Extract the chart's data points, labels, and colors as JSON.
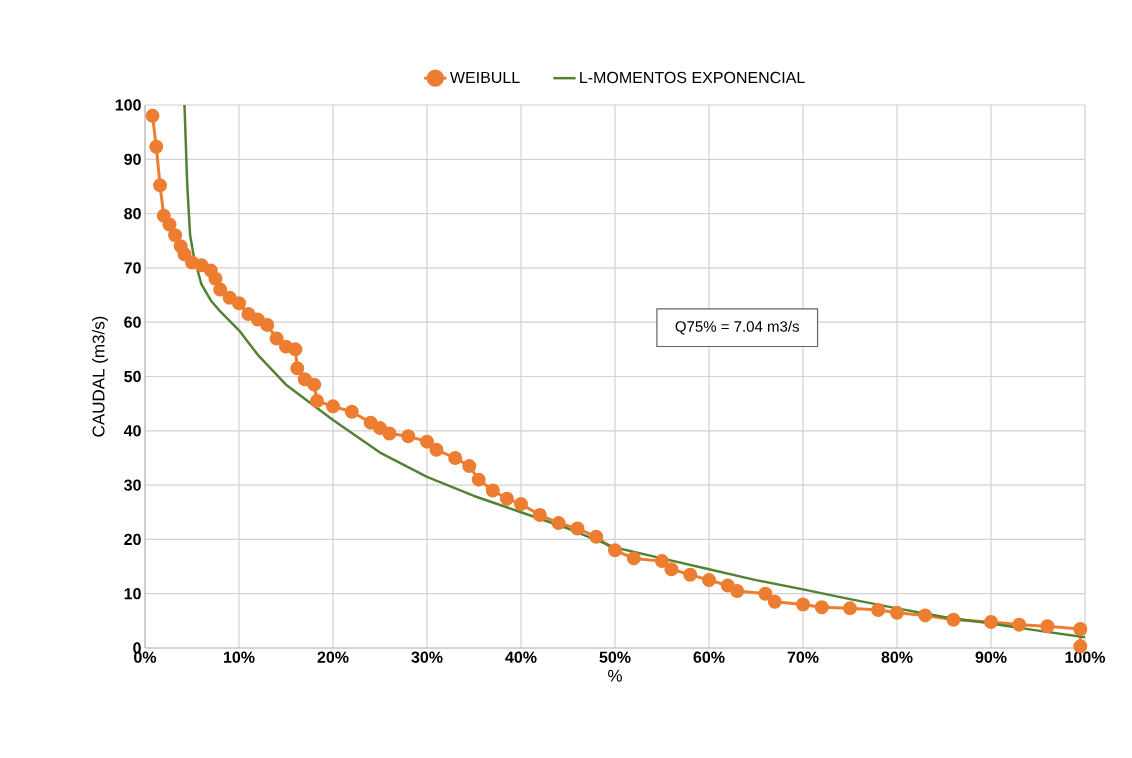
{
  "chart_data": {
    "type": "line",
    "xlabel": "%",
    "ylabel": "CAUDAL (m3/s)",
    "annotations": [
      "Q75% = 7.04 m3/s"
    ],
    "xlim": [
      0,
      100
    ],
    "ylim": [
      0,
      100
    ],
    "xticks": [
      {
        "value": 0,
        "label": "0%"
      },
      {
        "value": 10,
        "label": "10%"
      },
      {
        "value": 20,
        "label": "20%"
      },
      {
        "value": 30,
        "label": "30%"
      },
      {
        "value": 40,
        "label": "40%"
      },
      {
        "value": 50,
        "label": "50%"
      },
      {
        "value": 60,
        "label": "60%"
      },
      {
        "value": 70,
        "label": "70%"
      },
      {
        "value": 80,
        "label": "80%"
      },
      {
        "value": 90,
        "label": "90%"
      },
      {
        "value": 100,
        "label": "100%"
      }
    ],
    "yticks": [
      0,
      10,
      20,
      30,
      40,
      50,
      60,
      70,
      80,
      90,
      100
    ],
    "grid": true,
    "legend": "top",
    "series": [
      {
        "name": "WEIBULL",
        "color": "#ed7d31",
        "marker": "circle",
        "line_style": "solid",
        "x": [
          0.8,
          1.2,
          1.6,
          2.0,
          2.6,
          3.2,
          3.8,
          4.2,
          5,
          6,
          7,
          7.5,
          8,
          9,
          10,
          11,
          12,
          13,
          14,
          15,
          16,
          16.2,
          17,
          18,
          18.3,
          20,
          22,
          24,
          25,
          26,
          28,
          30,
          31,
          33,
          34.5,
          35.5,
          37,
          38.5,
          40,
          42,
          44,
          46,
          48,
          50,
          52,
          55,
          56,
          58,
          60,
          62,
          63,
          66,
          67,
          70,
          72,
          75,
          78,
          80,
          83,
          86,
          90,
          93,
          96,
          99.5,
          99.5
        ],
        "values": [
          98,
          92.3,
          85.2,
          79.6,
          78,
          76,
          74,
          72.5,
          71,
          70.5,
          69.5,
          68,
          66,
          64.5,
          63.5,
          61.5,
          60.5,
          59.5,
          57,
          55.5,
          55,
          51.5,
          49.5,
          48.5,
          45.5,
          44.5,
          43.5,
          41.5,
          40.5,
          39.5,
          39,
          38,
          36.5,
          35,
          33.5,
          31,
          29,
          27.5,
          26.5,
          24.5,
          23,
          22,
          20.5,
          18,
          16.5,
          16,
          14.5,
          13.5,
          12.5,
          11.5,
          10.5,
          10,
          8.5,
          8,
          7.5,
          7.3,
          7,
          6.5,
          6,
          5.2,
          4.8,
          4.3,
          4,
          3.5,
          0.3
        ]
      },
      {
        "name": "L-MOMENTOS EXPONENCIAL",
        "color": "#548235",
        "marker": "none",
        "line_style": "solid",
        "x": [
          4.2,
          4.5,
          4.8,
          5.2,
          6,
          7,
          8,
          10,
          12,
          15,
          20,
          25,
          30,
          35,
          40,
          45,
          50,
          55,
          60,
          65,
          70,
          75,
          80,
          85,
          90,
          95,
          100
        ],
        "values": [
          100,
          85,
          76,
          72,
          67,
          64,
          62,
          58.5,
          54,
          48.5,
          42,
          36,
          31.5,
          28,
          25,
          22,
          18.5,
          16.5,
          14.5,
          12.5,
          10.8,
          9,
          7.3,
          5.7,
          4.5,
          3.2,
          2
        ]
      }
    ]
  }
}
